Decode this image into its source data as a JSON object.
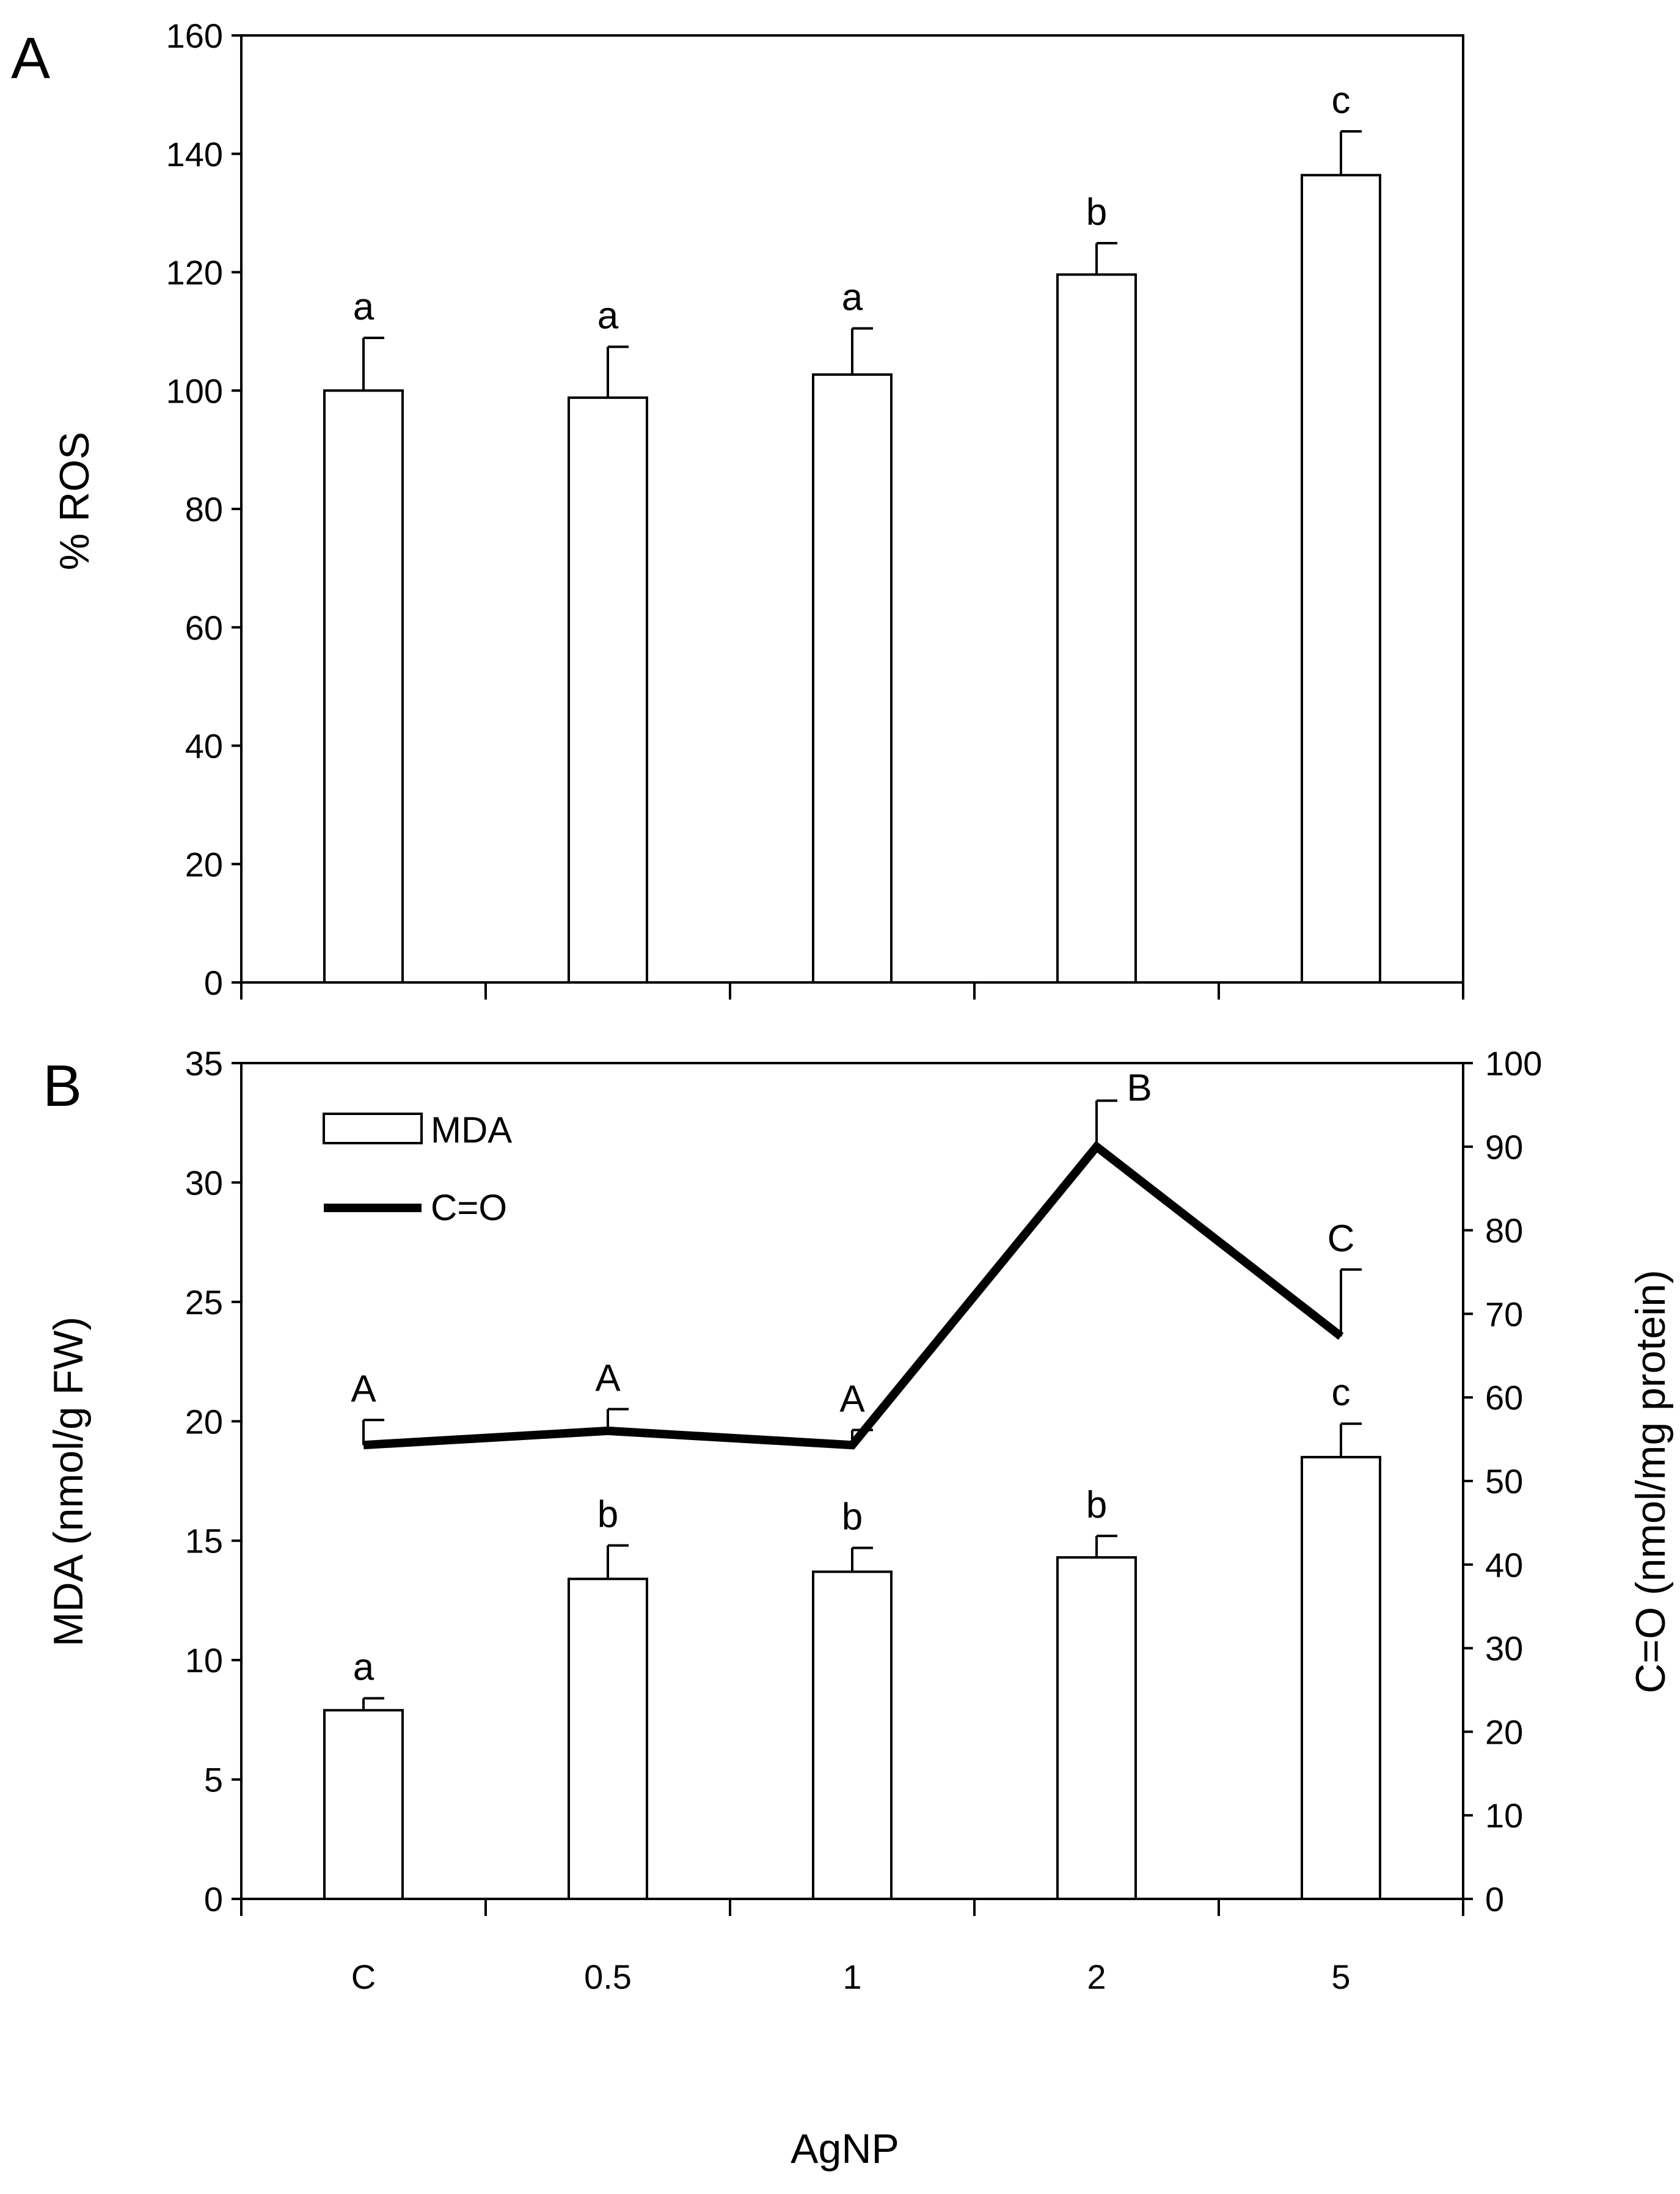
{
  "colors": {
    "ink": "#000000",
    "bar_fill": "#ffffff",
    "background": "#ffffff"
  },
  "chart_data": [
    {
      "panel": "A",
      "type": "bar",
      "categories": [
        "C",
        "0.5",
        "1",
        "2",
        "5"
      ],
      "values": [
        100,
        98.8,
        102.7,
        119.6,
        136.4
      ],
      "errors": [
        8.9,
        8.6,
        7.8,
        5.3,
        7.4
      ],
      "significance": [
        "a",
        "a",
        "a",
        "b",
        "c"
      ],
      "ylabel": "% ROS",
      "ylim": [
        0,
        160
      ],
      "yticks": [
        "0",
        "20",
        "40",
        "60",
        "80",
        "100",
        "120",
        "140",
        "160"
      ]
    },
    {
      "panel": "B",
      "type": "bar+line",
      "categories": [
        "C",
        "0.5",
        "1",
        "2",
        "5"
      ],
      "xlabel": "AgNP",
      "series": [
        {
          "name": "MDA",
          "type": "bar",
          "axis": "left",
          "values": [
            7.9,
            13.4,
            13.7,
            14.3,
            18.5
          ],
          "errors": [
            0.5,
            1.4,
            1.0,
            0.9,
            1.4
          ],
          "significance": [
            "a",
            "b",
            "b",
            "b",
            "c"
          ]
        },
        {
          "name": "C=O",
          "type": "line",
          "axis": "right",
          "values": [
            54.3,
            56.0,
            54.3,
            90.0,
            67.3
          ],
          "errors": [
            3.0,
            2.6,
            1.8,
            5.5,
            8.0
          ],
          "significance": [
            "A",
            "A",
            "A",
            "B",
            "C"
          ]
        }
      ],
      "ylabel_left": "MDA (nmol/g FW)",
      "ylim_left": [
        0,
        35
      ],
      "yticks_left": [
        "0",
        "5",
        "10",
        "15",
        "20",
        "25",
        "30",
        "35"
      ],
      "ylabel_right": "C=O (nmol/mg protein)",
      "ylim_right": [
        0,
        100
      ],
      "yticks_right": [
        "0",
        "10",
        "20",
        "30",
        "40",
        "50",
        "60",
        "70",
        "80",
        "90",
        "100"
      ],
      "legend": [
        "MDA",
        "C=O"
      ],
      "legend_position": "top-left"
    }
  ]
}
